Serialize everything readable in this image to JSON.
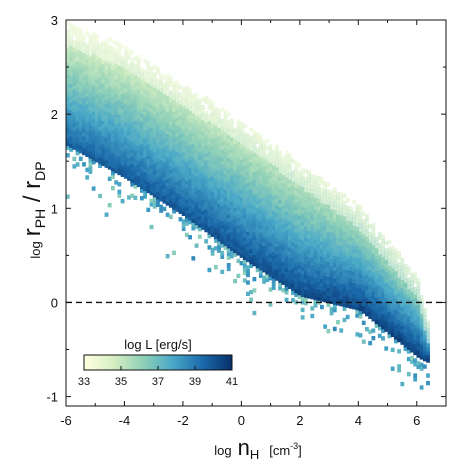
{
  "chart_data": {
    "type": "heatmap",
    "title": "",
    "x_axis": {
      "label_prefix": "log",
      "label_main": "n",
      "label_sub": "H",
      "label_unit": "[cm",
      "label_unit_exp": "-3",
      "label_unit_close": "]",
      "range": [
        -6,
        7
      ],
      "ticks": [
        -6,
        -4,
        -2,
        0,
        2,
        4,
        6
      ]
    },
    "y_axis": {
      "label_prefix": "log",
      "label_num": "r",
      "label_num_sub": "PH",
      "label_sep": " / ",
      "label_den": "r",
      "label_den_sub": "DP",
      "range": [
        -1.1,
        3
      ],
      "ticks": [
        -1,
        0,
        1,
        2,
        3
      ]
    },
    "reference_line": {
      "y": 0,
      "style": "dashed"
    },
    "colorbar": {
      "label": "log L [erg/s]",
      "range": [
        33,
        41
      ],
      "ticks": [
        "33",
        "35",
        "37",
        "39",
        "41"
      ],
      "colors": [
        "#ffffe0",
        "#d6efc2",
        "#8fd0b8",
        "#49a8c8",
        "#1b6aaa",
        "#08306b"
      ]
    },
    "distribution": {
      "description_bounds_upper": [
        [
          -6,
          2.95
        ],
        [
          -4,
          2.7
        ],
        [
          -2,
          2.3
        ],
        [
          0,
          1.9
        ],
        [
          2,
          1.45
        ],
        [
          4,
          1.0
        ],
        [
          6,
          0.25
        ],
        [
          6.3,
          -0.2
        ]
      ],
      "description_bounds_lower": [
        [
          -6,
          1.65
        ],
        [
          -4,
          1.3
        ],
        [
          -2,
          0.9
        ],
        [
          0,
          0.45
        ],
        [
          2,
          0.05
        ],
        [
          4,
          -0.1
        ],
        [
          6,
          -0.6
        ],
        [
          6.3,
          -0.65
        ]
      ]
    }
  }
}
